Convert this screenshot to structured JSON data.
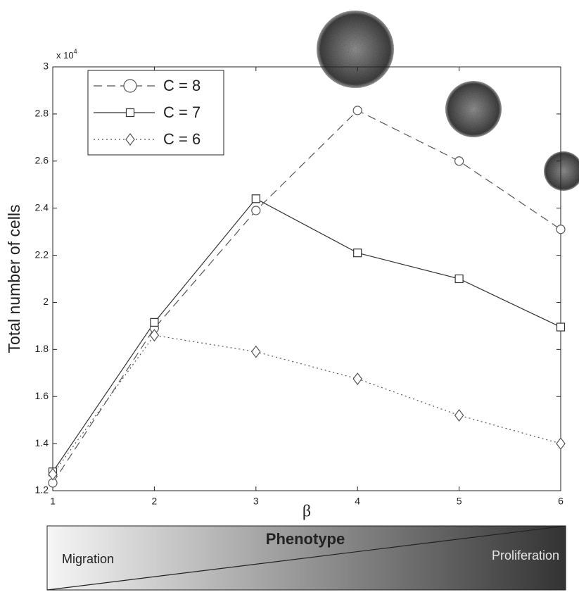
{
  "chart_data": {
    "type": "line",
    "x_label": "β",
    "y_label": "Total number of cells",
    "y_multiplier": {
      "base": "x 10",
      "exponent": "4"
    },
    "x": [
      1,
      2,
      3,
      4,
      5,
      6
    ],
    "xlim": [
      1,
      6
    ],
    "xticks": [
      1,
      2,
      3,
      4,
      5,
      6
    ],
    "ylim": [
      1.2,
      3
    ],
    "yticks": [
      1.2,
      1.4,
      1.6,
      1.8,
      2,
      2.2,
      2.4,
      2.6,
      2.8,
      3
    ],
    "legend": "upper left",
    "series": [
      {
        "name": "C = 8",
        "color": "#555555",
        "dash": "dashed",
        "marker": "circle",
        "values": [
          1.233,
          1.89,
          2.39,
          2.815,
          2.6,
          2.31
        ]
      },
      {
        "name": "C = 7",
        "color": "#333333",
        "dash": "solid",
        "marker": "square",
        "values": [
          1.28,
          1.915,
          2.44,
          2.21,
          2.1,
          1.895
        ]
      },
      {
        "name": "C = 6",
        "color": "#555555",
        "dash": "dotted",
        "marker": "diamond",
        "values": [
          1.27,
          1.86,
          1.79,
          1.675,
          1.52,
          1.4
        ]
      }
    ],
    "phenotype_bar": {
      "title": "Phenotype",
      "left": "Migration",
      "right": "Proliferation"
    }
  }
}
